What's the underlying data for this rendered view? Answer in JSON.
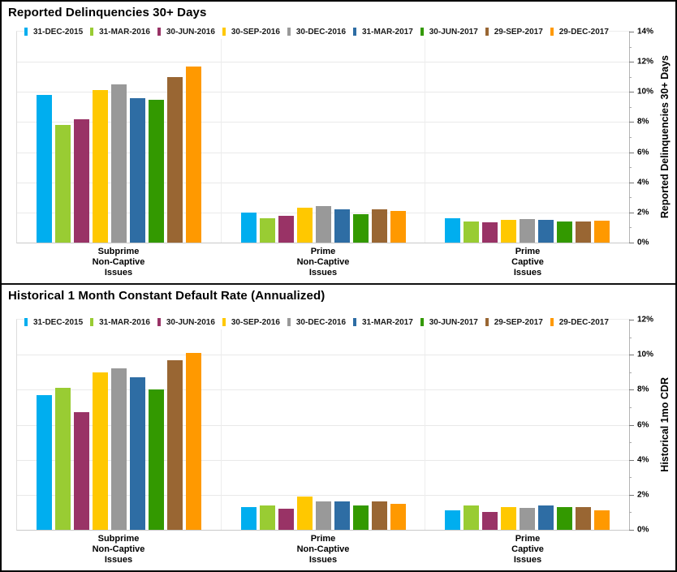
{
  "page": {
    "background": "#FFFFFF",
    "border_color": "#000000",
    "gridline_color": "#E9E9E9"
  },
  "chart_data": [
    {
      "type": "bar",
      "title": "Reported Delinquencies 30+ Days",
      "ylabel": "Reported Delinquencies 30+ Days",
      "ylim": [
        0,
        14
      ],
      "yticks": [
        0,
        2,
        4,
        6,
        8,
        10,
        12,
        14
      ],
      "ytick_labels": [
        "0%",
        "2%",
        "4%",
        "6%",
        "8%",
        "10%",
        "12%",
        "14%"
      ],
      "minor_tick_step": 1,
      "grid": "horizontal",
      "legend_position": "top",
      "categories": [
        "Subprime Non-Captive Issues",
        "Prime Non-Captive Issues",
        "Prime Captive Issues"
      ],
      "category_labels": [
        "Subprime\nNon-Captive\nIssues",
        "Prime\nNon-Captive\nIssues",
        "Prime\nCaptive\nIssues"
      ],
      "series": [
        {
          "name": "31-DEC-2015",
          "color": "#00AEEF",
          "values": [
            9.8,
            2.0,
            1.6
          ]
        },
        {
          "name": "31-MAR-2016",
          "color": "#99CC33",
          "values": [
            7.8,
            1.6,
            1.4
          ]
        },
        {
          "name": "30-JUN-2016",
          "color": "#993366",
          "values": [
            8.2,
            1.8,
            1.35
          ]
        },
        {
          "name": "30-SEP-2016",
          "color": "#FFC800",
          "values": [
            10.1,
            2.3,
            1.5
          ]
        },
        {
          "name": "30-DEC-2016",
          "color": "#999999",
          "values": [
            10.5,
            2.4,
            1.55
          ]
        },
        {
          "name": "31-MAR-2017",
          "color": "#2E6DA4",
          "values": [
            9.6,
            2.2,
            1.5
          ]
        },
        {
          "name": "30-JUN-2017",
          "color": "#339900",
          "values": [
            9.5,
            1.9,
            1.4
          ]
        },
        {
          "name": "29-SEP-2017",
          "color": "#996633",
          "values": [
            11.0,
            2.2,
            1.4
          ]
        },
        {
          "name": "29-DEC-2017",
          "color": "#FF9900",
          "values": [
            11.7,
            2.1,
            1.45
          ]
        }
      ]
    },
    {
      "type": "bar",
      "title": "Historical 1 Month Constant Default Rate (Annualized)",
      "ylabel": "Historical 1mo CDR",
      "ylim": [
        0,
        12
      ],
      "yticks": [
        0,
        2,
        4,
        6,
        8,
        10,
        12
      ],
      "ytick_labels": [
        "0%",
        "2%",
        "4%",
        "6%",
        "8%",
        "10%",
        "12%"
      ],
      "minor_tick_step": 1,
      "grid": "horizontal",
      "legend_position": "top",
      "categories": [
        "Subprime Non-Captive Issues",
        "Prime Non-Captive Issues",
        "Prime Captive Issues"
      ],
      "category_labels": [
        "Subprime\nNon-Captive\nIssues",
        "Prime\nNon-Captive\nIssues",
        "Prime\nCaptive\nIssues"
      ],
      "series": [
        {
          "name": "31-DEC-2015",
          "color": "#00AEEF",
          "values": [
            7.7,
            1.3,
            1.1
          ]
        },
        {
          "name": "31-MAR-2016",
          "color": "#99CC33",
          "values": [
            8.1,
            1.4,
            1.4
          ]
        },
        {
          "name": "30-JUN-2016",
          "color": "#993366",
          "values": [
            6.7,
            1.2,
            1.0
          ]
        },
        {
          "name": "30-SEP-2016",
          "color": "#FFC800",
          "values": [
            9.0,
            1.9,
            1.3
          ]
        },
        {
          "name": "30-DEC-2016",
          "color": "#999999",
          "values": [
            9.2,
            1.6,
            1.25
          ]
        },
        {
          "name": "31-MAR-2017",
          "color": "#2E6DA4",
          "values": [
            8.7,
            1.6,
            1.4
          ]
        },
        {
          "name": "30-JUN-2017",
          "color": "#339900",
          "values": [
            8.0,
            1.4,
            1.3
          ]
        },
        {
          "name": "29-SEP-2017",
          "color": "#996633",
          "values": [
            9.7,
            1.6,
            1.3
          ]
        },
        {
          "name": "29-DEC-2017",
          "color": "#FF9900",
          "values": [
            10.1,
            1.5,
            1.1
          ]
        }
      ]
    }
  ]
}
